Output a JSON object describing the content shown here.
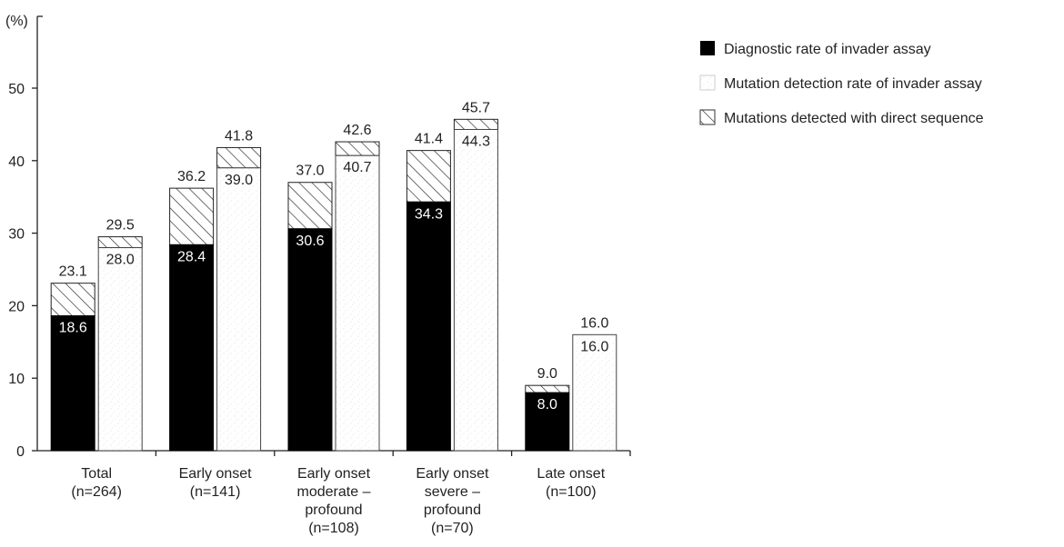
{
  "chart_data": {
    "type": "bar",
    "y_unit_label": "(%)",
    "ylim": [
      0,
      60
    ],
    "y_ticks": [
      0,
      10,
      20,
      30,
      40,
      50
    ],
    "grid": false,
    "legend_position": "top-right",
    "colors": {
      "dark": "#000000",
      "light": "#ffffff",
      "hatch": "#333333",
      "axis": "#222222",
      "speckle": "#cfcfcf"
    },
    "legend": [
      {
        "name": "Diagnostic rate of invader assay",
        "style": "solid-black"
      },
      {
        "name": "Mutation detection rate of invader assay",
        "style": "speckled-white"
      },
      {
        "name": "Mutations detected with direct sequence",
        "style": "hatched"
      }
    ],
    "categories": [
      {
        "lines": [
          "Total",
          "(n=264)"
        ]
      },
      {
        "lines": [
          "Early onset",
          "(n=141)"
        ]
      },
      {
        "lines": [
          "Early onset",
          "moderate –",
          "profound",
          "(n=108)"
        ]
      },
      {
        "lines": [
          "Early onset",
          "severe –",
          "profound",
          "(n=70)"
        ]
      },
      {
        "lines": [
          "Late onset",
          "(n=100)"
        ]
      }
    ],
    "series": [
      {
        "name": "Diagnostic rate of invader assay",
        "base": [
          18.6,
          28.4,
          30.6,
          34.3,
          8.0
        ],
        "base_labels": [
          "18.6",
          "28.4",
          "30.6",
          "34.3",
          "8.0"
        ],
        "total": [
          23.1,
          36.2,
          37.0,
          41.4,
          9.0
        ],
        "total_labels": [
          "23.1",
          "36.2",
          "37.0",
          "41.4",
          "9.0"
        ]
      },
      {
        "name": "Mutation detection rate of invader assay",
        "base": [
          28.0,
          39.0,
          40.7,
          44.3,
          16.0
        ],
        "base_labels": [
          "28.0",
          "39.0",
          "40.7",
          "44.3",
          "16.0"
        ],
        "total": [
          29.5,
          41.8,
          42.6,
          45.7,
          16.0
        ],
        "total_labels": [
          "29.5",
          "41.8",
          "42.6",
          "45.7",
          "16.0"
        ]
      }
    ]
  }
}
